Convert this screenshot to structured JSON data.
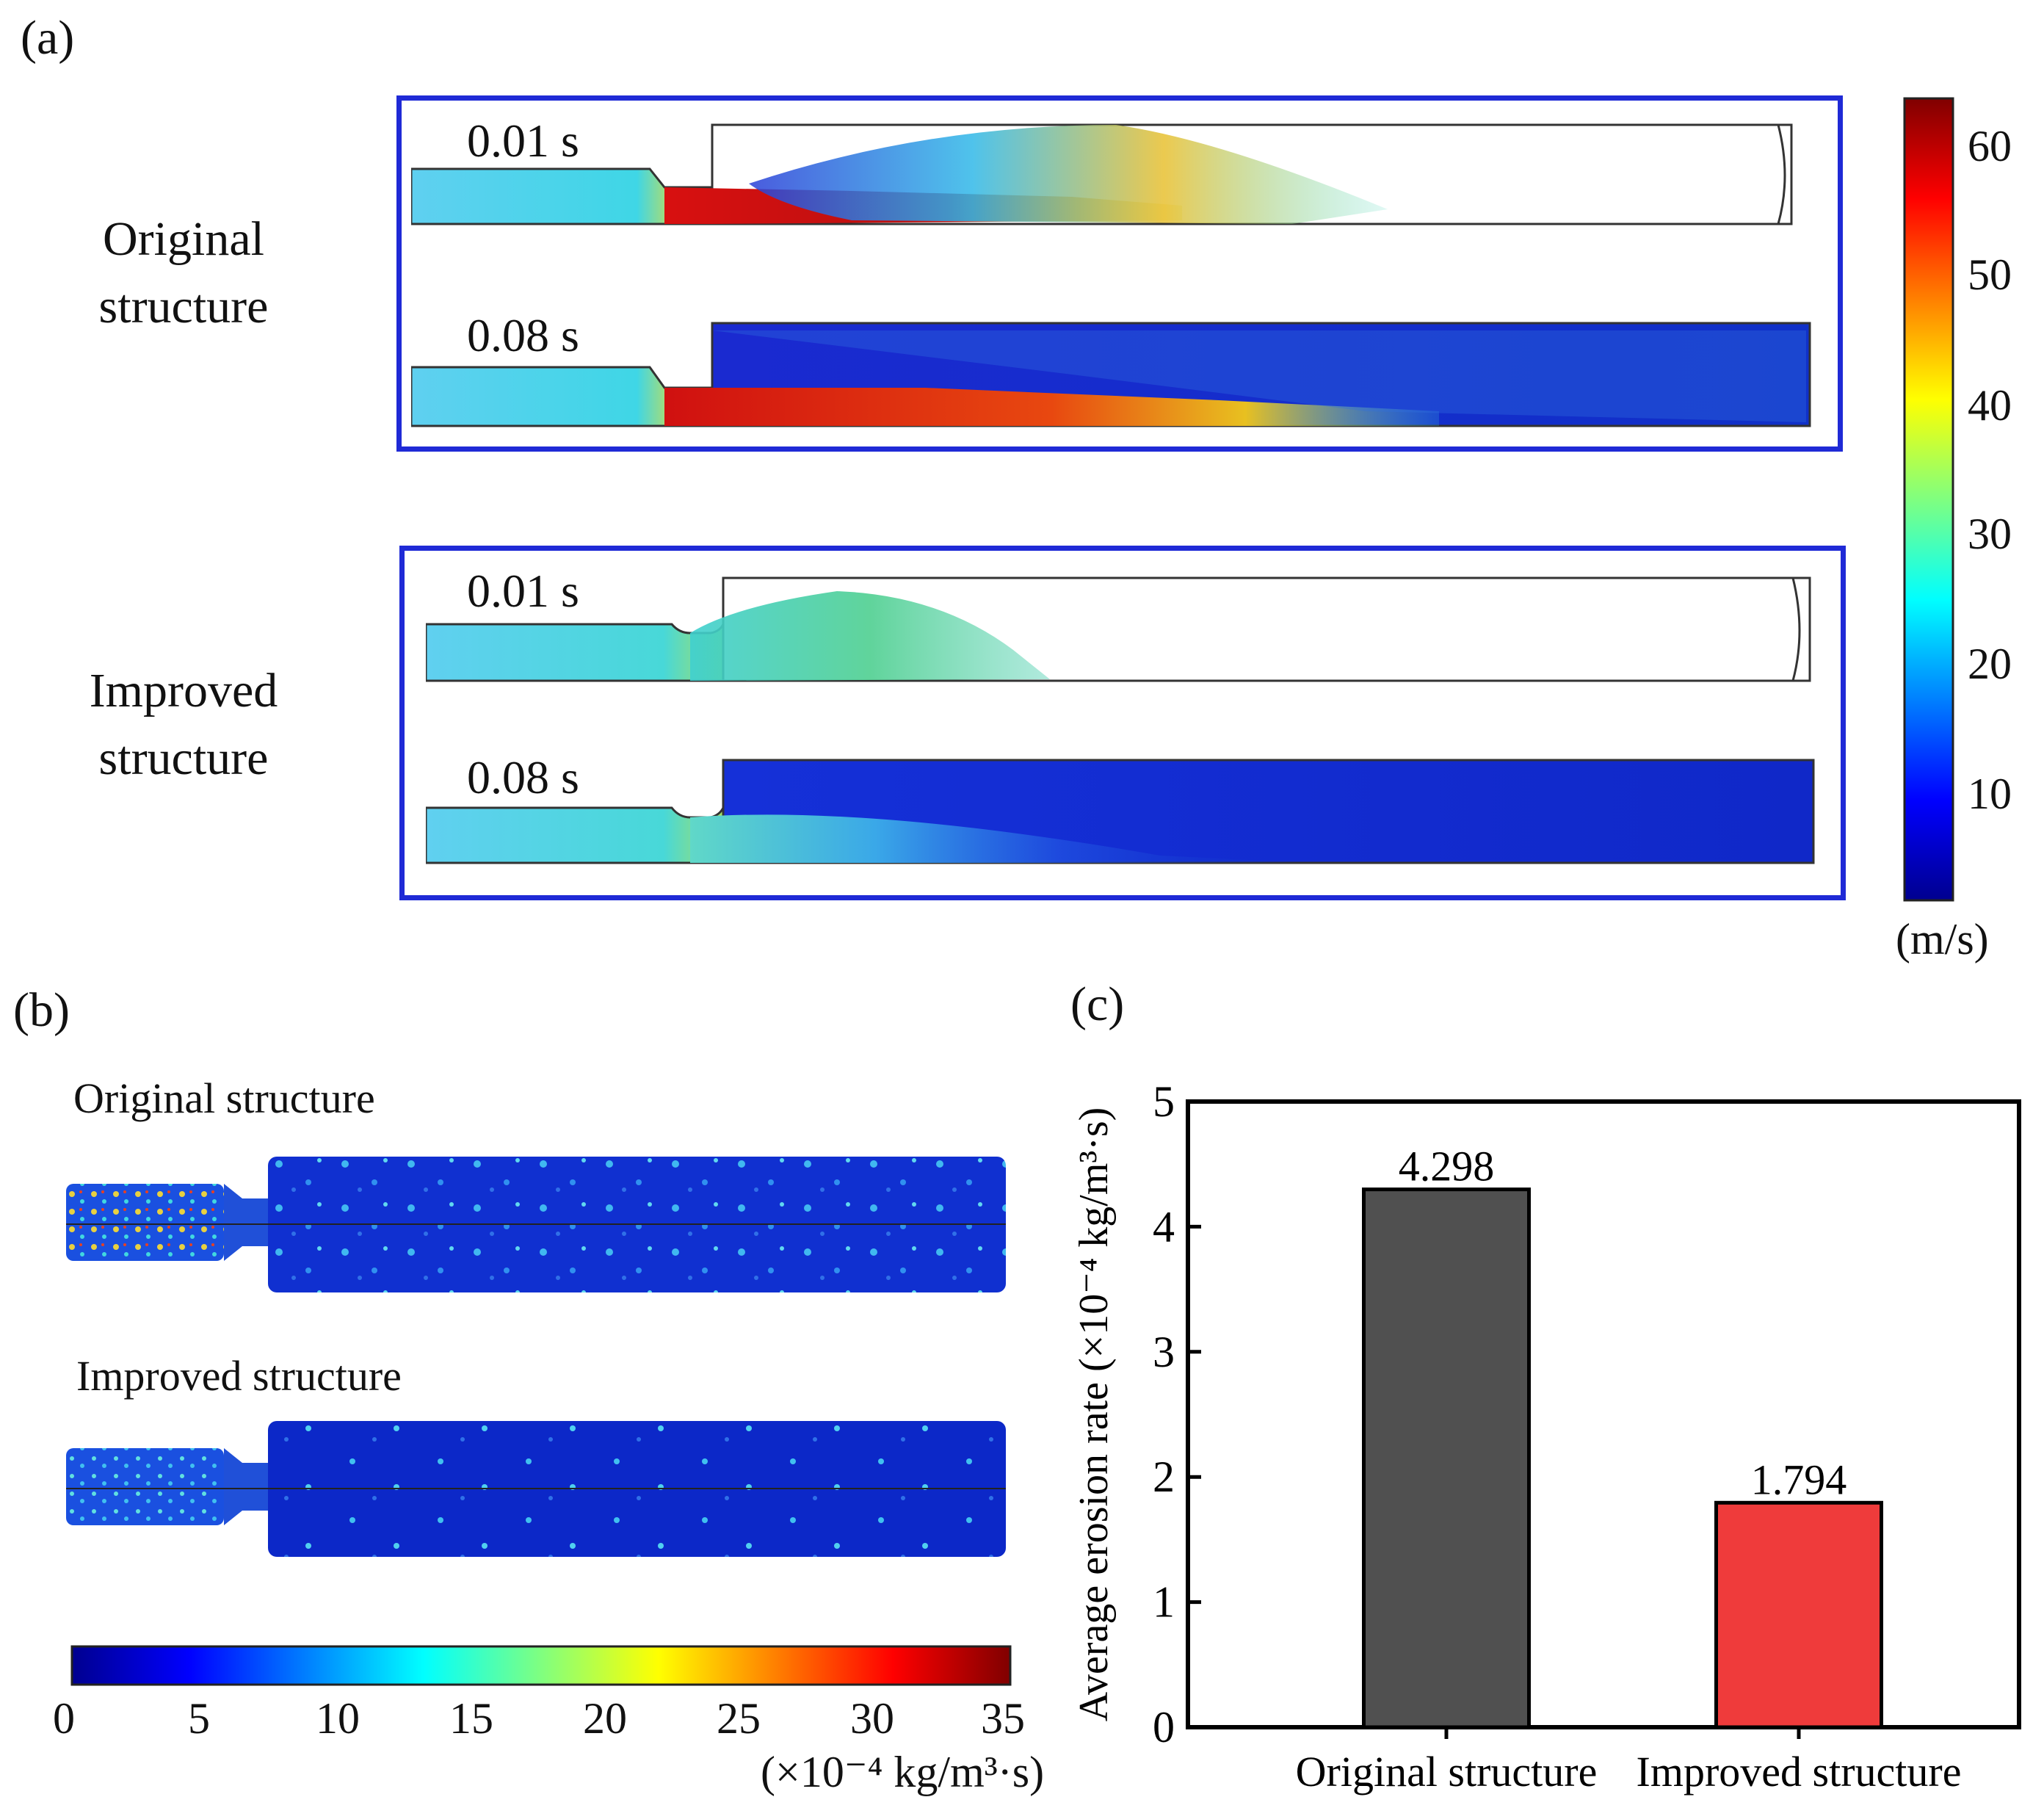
{
  "panel_a": {
    "label": "(a)",
    "rows": [
      {
        "label_line1": "Original",
        "label_line2": "structure",
        "snapshots": [
          {
            "time": "0.01 s"
          },
          {
            "time": "0.08 s"
          }
        ]
      },
      {
        "label_line1": "Improved",
        "label_line2": "structure",
        "snapshots": [
          {
            "time": "0.01 s"
          },
          {
            "time": "0.08 s"
          }
        ]
      }
    ],
    "colorbar": {
      "ticks": [
        "60",
        "50",
        "40",
        "30",
        "20",
        "10"
      ],
      "unit": "(m/s)"
    },
    "box_color": "#1f2ad6"
  },
  "panel_b": {
    "label": "(b)",
    "original_title": "Original structure",
    "improved_title": "Improved structure",
    "colorbar": {
      "ticks": [
        "0",
        "5",
        "10",
        "15",
        "20",
        "25",
        "30",
        "35"
      ],
      "unit": "(×10⁻⁴ kg/m³·s)"
    }
  },
  "chart_data": {
    "type": "bar",
    "panel_label": "(c)",
    "categories": [
      "Original structure",
      "Improved structure"
    ],
    "values": [
      4.298,
      1.794
    ],
    "value_labels": [
      "4.298",
      "1.794"
    ],
    "colors": [
      "#505050",
      "#ef3b3b"
    ],
    "ylabel": "Average erosion rate (×10⁻⁴ kg/m³·s)",
    "xlabel": "",
    "ylim": [
      0,
      5
    ],
    "yticks": [
      "0",
      "1",
      "2",
      "3",
      "4",
      "5"
    ],
    "grid": false
  }
}
